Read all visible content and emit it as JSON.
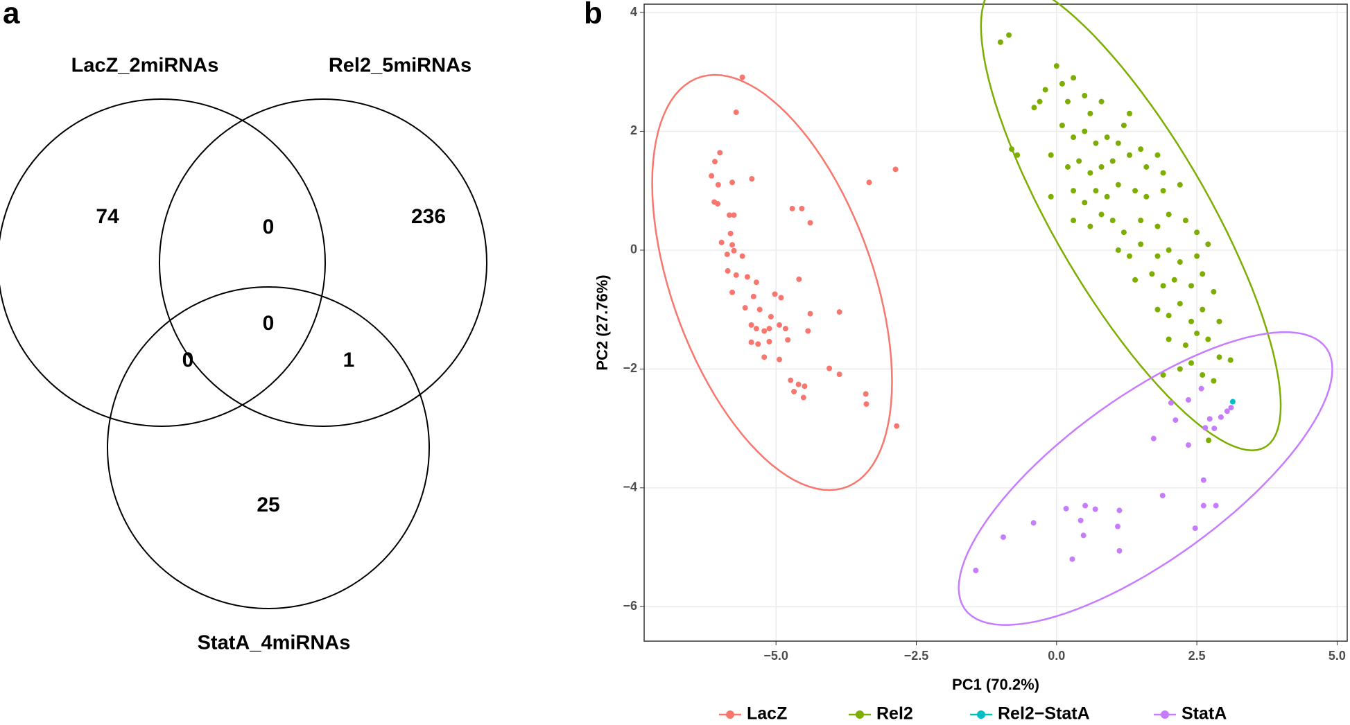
{
  "chart_data": [
    {
      "type": "venn",
      "panel_label": "a",
      "sets": [
        "LacZ_2miRNAs",
        "Rel2_5miRNAs",
        "StatA_4miRNAs"
      ],
      "regions": [
        {
          "sets": [
            0
          ],
          "value": 74
        },
        {
          "sets": [
            1
          ],
          "value": 236
        },
        {
          "sets": [
            2
          ],
          "value": 25
        },
        {
          "sets": [
            0,
            1
          ],
          "value": 0
        },
        {
          "sets": [
            0,
            2
          ],
          "value": 0
        },
        {
          "sets": [
            1,
            2
          ],
          "value": 1
        },
        {
          "sets": [
            0,
            1,
            2
          ],
          "value": 0
        }
      ]
    },
    {
      "type": "scatter",
      "panel_label": "b",
      "x_label": "PC1 (70.2%)",
      "y_label": "PC2 (27.76%)",
      "xlim": [
        -7.35,
        5.18
      ],
      "ylim": [
        -6.58,
        4.14
      ],
      "xticks": [
        {
          "value": -5,
          "label": "−5.0"
        },
        {
          "value": -2.5,
          "label": "−2.5"
        },
        {
          "value": 0,
          "label": "0.0"
        },
        {
          "value": 2.5,
          "label": "2.5"
        },
        {
          "value": 5,
          "label": "5.0"
        }
      ],
      "yticks": [
        {
          "value": -6,
          "label": "−6"
        },
        {
          "value": -4,
          "label": "−4"
        },
        {
          "value": -2,
          "label": "−2"
        },
        0,
        2,
        4
      ],
      "grid": true,
      "ellipse": true,
      "legend": "bottom",
      "series": [
        {
          "name": "LacZ",
          "color": "#F8766D",
          "x": [
            -5.6,
            -5.71,
            -6.09,
            -6.0,
            -6.15,
            -6.03,
            -5.78,
            -5.43,
            -6.1,
            -6.04,
            -5.83,
            -5.75,
            -4.71,
            -4.54,
            -4.39,
            -5.81,
            -5.97,
            -5.78,
            -5.75,
            -5.87,
            -5.6,
            -5.86,
            -5.71,
            -5.51,
            -5.35,
            -4.59,
            -5.78,
            -5.4,
            -5.02,
            -4.91,
            -5.55,
            -5.29,
            -5.09,
            -4.39,
            -3.87,
            -5.44,
            -5.35,
            -5.21,
            -5.12,
            -4.94,
            -4.83,
            -5.44,
            -5.32,
            -5.12,
            -4.43,
            -5.21,
            -4.94,
            -4.79,
            -4.05,
            -3.87,
            -4.74,
            -4.6,
            -4.49,
            -4.68,
            -4.51,
            -3.34,
            -2.87,
            -3.4,
            -3.39,
            -2.85
          ],
          "y": [
            2.91,
            2.32,
            1.49,
            1.64,
            1.25,
            1.1,
            1.14,
            1.2,
            0.81,
            0.78,
            0.59,
            0.59,
            0.7,
            0.7,
            0.46,
            0.28,
            0.13,
            0.09,
            -0.01,
            -0.07,
            -0.1,
            -0.35,
            -0.42,
            -0.45,
            -0.54,
            -0.49,
            -0.71,
            -0.78,
            -0.74,
            -0.8,
            -0.97,
            -1.0,
            -1.12,
            -1.07,
            -1.04,
            -1.26,
            -1.32,
            -1.36,
            -1.32,
            -1.26,
            -1.32,
            -1.55,
            -1.58,
            -1.54,
            -1.36,
            -1.8,
            -1.84,
            -1.51,
            -1.99,
            -2.09,
            -2.19,
            -2.26,
            -2.29,
            -2.38,
            -2.48,
            1.14,
            1.36,
            -2.42,
            -2.59,
            -2.96
          ]
        },
        {
          "name": "Rel2",
          "color": "#7CAE00",
          "x": [
            -1.0,
            -0.85,
            -0.8,
            -0.7,
            -0.4,
            -0.3,
            0.0,
            0.1,
            0.3,
            -0.2,
            0.2,
            0.5,
            0.6,
            0.8,
            0.1,
            0.3,
            0.5,
            0.7,
            0.9,
            1.1,
            1.2,
            1.3,
            -0.1,
            0.2,
            0.4,
            0.6,
            0.8,
            1.0,
            1.3,
            1.5,
            1.6,
            1.8,
            1.9,
            -0.1,
            0.3,
            0.5,
            0.7,
            0.9,
            1.1,
            1.4,
            1.6,
            1.9,
            2.2,
            0.3,
            0.6,
            0.8,
            1.0,
            1.2,
            1.5,
            1.8,
            2.0,
            2.3,
            2.5,
            1.1,
            1.3,
            1.5,
            1.8,
            2.0,
            2.2,
            2.5,
            2.7,
            1.4,
            1.7,
            1.9,
            2.1,
            2.4,
            2.6,
            2.8,
            1.8,
            2.0,
            2.2,
            2.4,
            2.6,
            2.9,
            2.0,
            2.3,
            2.5,
            2.7,
            2.9,
            1.9,
            2.2,
            2.4,
            2.6,
            2.8,
            3.1,
            2.71
          ],
          "y": [
            3.5,
            3.62,
            1.7,
            1.6,
            2.4,
            2.5,
            3.1,
            2.8,
            2.9,
            2.7,
            2.5,
            2.6,
            2.3,
            2.5,
            2.1,
            1.9,
            2.0,
            1.8,
            1.9,
            1.8,
            2.1,
            2.3,
            1.6,
            1.4,
            1.5,
            1.3,
            1.4,
            1.5,
            1.6,
            1.7,
            1.4,
            1.6,
            1.3,
            0.9,
            1.0,
            0.8,
            1.0,
            0.9,
            1.1,
            1.0,
            0.9,
            1.0,
            1.1,
            0.5,
            0.4,
            0.6,
            0.5,
            0.3,
            0.5,
            0.4,
            0.6,
            0.5,
            0.3,
            0.0,
            -0.1,
            0.1,
            -0.1,
            0.0,
            -0.2,
            -0.1,
            0.1,
            -0.5,
            -0.4,
            -0.6,
            -0.5,
            -0.6,
            -0.4,
            -0.7,
            -1.0,
            -1.1,
            -0.9,
            -1.2,
            -1.0,
            -1.2,
            -1.5,
            -1.6,
            -1.4,
            -1.5,
            -1.8,
            -2.1,
            -2.0,
            -1.9,
            -2.1,
            -2.2,
            -1.85,
            -3.2
          ]
        },
        {
          "name": "Rel2−StatA",
          "color": "#00BFC4",
          "x": [
            3.14
          ],
          "y": [
            -2.55
          ]
        },
        {
          "name": "StatA",
          "color": "#C77CFF",
          "x": [
            2.35,
            2.58,
            2.12,
            2.73,
            2.81,
            2.93,
            3.04,
            3.11,
            1.73,
            2.35,
            2.65,
            2.62,
            1.89,
            2.62,
            2.84,
            2.47,
            1.12,
            1.09,
            1.12,
            0.51,
            0.69,
            0.17,
            0.43,
            0.48,
            0.28,
            -0.41,
            -0.95,
            -1.44,
            2.04
          ],
          "y": [
            -2.52,
            -2.33,
            -2.86,
            -2.84,
            -3.0,
            -2.81,
            -2.71,
            -2.65,
            -3.17,
            -3.28,
            -2.99,
            -3.87,
            -4.13,
            -4.3,
            -4.3,
            -4.68,
            -4.38,
            -4.65,
            -5.06,
            -4.3,
            -4.36,
            -4.35,
            -4.55,
            -4.8,
            -5.2,
            -4.59,
            -4.83,
            -5.39,
            -2.57
          ]
        }
      ]
    }
  ]
}
